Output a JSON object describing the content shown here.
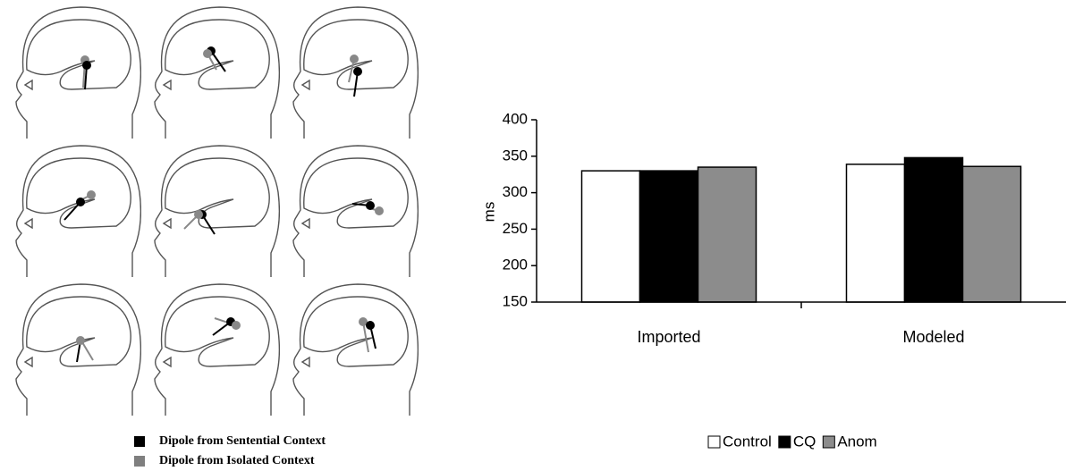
{
  "chart_data": {
    "type": "bar",
    "y_label": "ms",
    "categories": [
      "Imported",
      "Modeled"
    ],
    "series": [
      {
        "name": "Control",
        "color": "#ffffff",
        "values": [
          330,
          339
        ]
      },
      {
        "name": "CQ",
        "color": "#000000",
        "values": [
          330,
          348
        ]
      },
      {
        "name": "Anom",
        "color": "#8c8c8c",
        "values": [
          335,
          336
        ]
      }
    ],
    "ylim": [
      150,
      400
    ],
    "yticks": [
      150,
      200,
      250,
      300,
      350,
      400
    ],
    "legend": "bottom"
  },
  "dipole_legend": {
    "items": [
      {
        "label": "Dipole from Sentential Context",
        "color": "#000000"
      },
      {
        "label": "Dipole from Isolated Context",
        "color": "#7f7f7f"
      }
    ]
  }
}
